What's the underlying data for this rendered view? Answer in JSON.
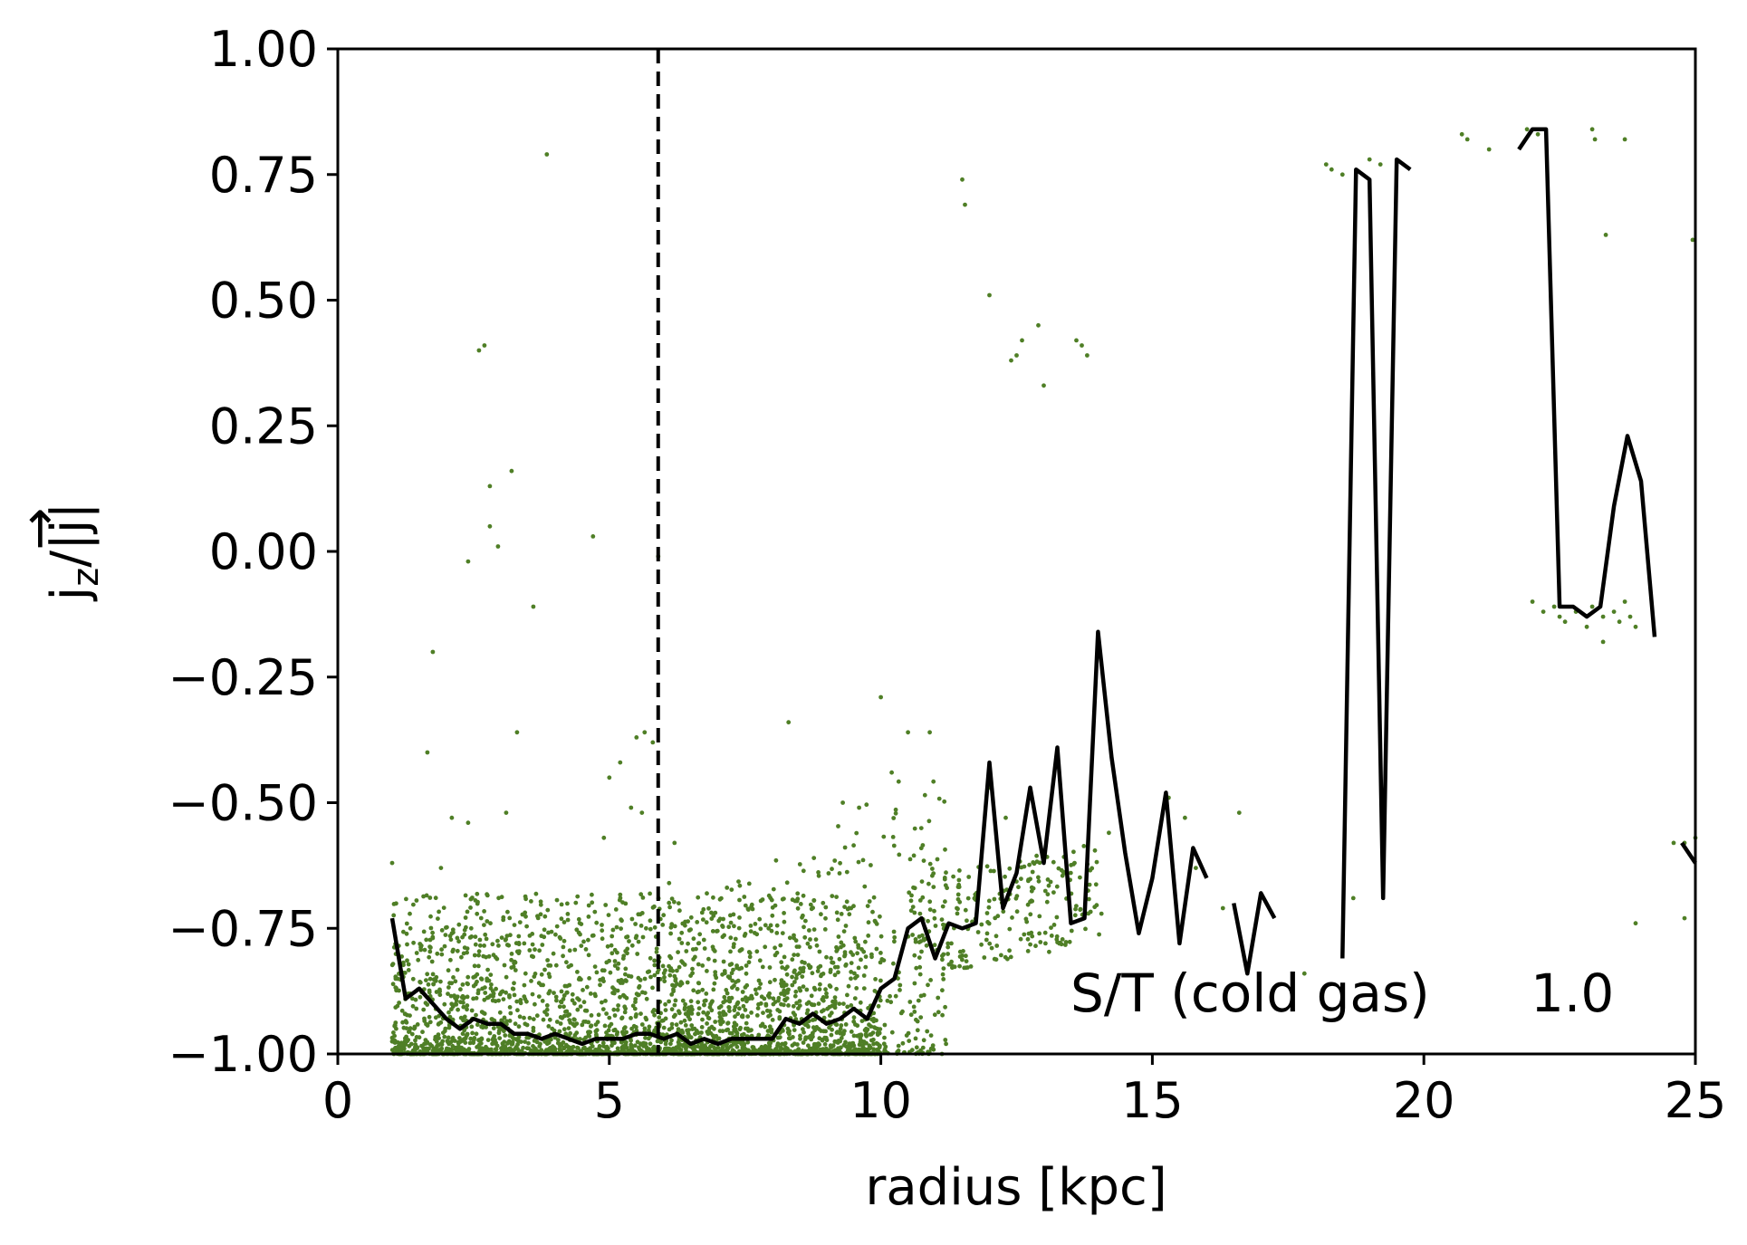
{
  "chart_data": {
    "type": "scatter",
    "xlabel": "radius [kpc]",
    "ylabel": "j_z/|j|",
    "ylabel_main": "j",
    "ylabel_sub": "z",
    "ylabel_rest": "/|j|",
    "ylabel_arrow": "→",
    "xlim": [
      0,
      25
    ],
    "ylim": [
      -1.0,
      1.0
    ],
    "x_ticks": [
      0,
      5,
      10,
      15,
      20,
      25
    ],
    "x_tick_labels": [
      "0",
      "5",
      "10",
      "15",
      "20",
      "25"
    ],
    "y_ticks": [
      1.0,
      0.75,
      0.5,
      0.25,
      0.0,
      -0.25,
      -0.5,
      -0.75,
      -1.0
    ],
    "y_tick_labels": [
      "1.00",
      "0.75",
      "0.50",
      "0.25",
      "0.00",
      "−0.25",
      "−0.50",
      "−0.75",
      "−1.00"
    ],
    "grid": false,
    "annotation": {
      "label": "S/T (cold gas)",
      "value": "1.0"
    },
    "vline": {
      "x": 5.9,
      "style": "dashed",
      "color": "#000000"
    },
    "scatter_color": "#4f7f26",
    "line_color": "#000000",
    "scatter_points": [
      [
        3.85,
        0.79
      ],
      [
        2.6,
        0.4
      ],
      [
        2.7,
        0.41
      ],
      [
        3.2,
        0.16
      ],
      [
        2.8,
        0.13
      ],
      [
        2.8,
        0.05
      ],
      [
        2.95,
        0.01
      ],
      [
        2.4,
        -0.02
      ],
      [
        4.7,
        0.03
      ],
      [
        3.6,
        -0.11
      ],
      [
        5.9,
        -0.01
      ],
      [
        1.75,
        -0.2
      ],
      [
        1.65,
        -0.4
      ],
      [
        3.3,
        -0.36
      ],
      [
        2.1,
        -0.53
      ],
      [
        2.4,
        -0.54
      ],
      [
        3.1,
        -0.52
      ],
      [
        1.9,
        -0.63
      ],
      [
        1.0,
        -0.62
      ],
      [
        5.5,
        -0.37
      ],
      [
        5.65,
        -0.36
      ],
      [
        5.8,
        -0.38
      ],
      [
        5.2,
        -0.42
      ],
      [
        5.0,
        -0.45
      ],
      [
        5.4,
        -0.51
      ],
      [
        5.6,
        -0.52
      ],
      [
        4.9,
        -0.57
      ],
      [
        6.2,
        -0.58
      ],
      [
        6.1,
        -0.66
      ],
      [
        8.3,
        -0.34
      ],
      [
        10.0,
        -0.29
      ],
      [
        10.5,
        -0.36
      ],
      [
        10.9,
        -0.36
      ],
      [
        9.3,
        -0.5
      ],
      [
        9.6,
        -0.51
      ],
      [
        10.2,
        -0.44
      ],
      [
        11.4,
        -0.71
      ],
      [
        11.3,
        -0.78
      ],
      [
        11.2,
        -0.98
      ],
      [
        11.5,
        0.74
      ],
      [
        11.55,
        0.69
      ],
      [
        12.0,
        0.51
      ],
      [
        12.4,
        0.38
      ],
      [
        12.5,
        0.39
      ],
      [
        12.6,
        0.42
      ],
      [
        12.9,
        0.45
      ],
      [
        13.0,
        0.33
      ],
      [
        13.6,
        0.42
      ],
      [
        13.7,
        0.41
      ],
      [
        13.8,
        0.39
      ],
      [
        15.3,
        -0.49
      ],
      [
        15.6,
        -0.53
      ],
      [
        16.6,
        -0.52
      ],
      [
        12.0,
        -0.47
      ],
      [
        12.3,
        -0.53
      ],
      [
        14.2,
        -0.56
      ],
      [
        15.8,
        -0.63
      ],
      [
        16.3,
        -0.71
      ],
      [
        17.8,
        -0.84
      ],
      [
        18.2,
        0.77
      ],
      [
        18.3,
        0.76
      ],
      [
        18.5,
        0.75
      ],
      [
        18.7,
        -0.69
      ],
      [
        19.0,
        0.78
      ],
      [
        19.2,
        0.77
      ],
      [
        20.7,
        0.83
      ],
      [
        20.8,
        0.82
      ],
      [
        21.2,
        0.8
      ],
      [
        21.9,
        0.84
      ],
      [
        22.1,
        0.83
      ],
      [
        23.1,
        0.84
      ],
      [
        23.15,
        0.82
      ],
      [
        23.7,
        0.82
      ],
      [
        23.35,
        0.63
      ],
      [
        22.0,
        -0.1
      ],
      [
        22.2,
        -0.12
      ],
      [
        22.4,
        -0.11
      ],
      [
        22.5,
        -0.13
      ],
      [
        22.6,
        -0.14
      ],
      [
        22.8,
        -0.12
      ],
      [
        23.0,
        -0.15
      ],
      [
        23.1,
        -0.11
      ],
      [
        23.3,
        -0.13
      ],
      [
        23.3,
        -0.18
      ],
      [
        23.5,
        -0.12
      ],
      [
        23.6,
        -0.14
      ],
      [
        23.7,
        -0.1
      ],
      [
        23.8,
        -0.13
      ],
      [
        23.9,
        -0.15
      ],
      [
        24.6,
        -0.58
      ],
      [
        24.8,
        -0.58
      ],
      [
        25.0,
        -0.57
      ],
      [
        23.9,
        -0.74
      ],
      [
        24.8,
        -0.73
      ],
      [
        24.95,
        0.62
      ]
    ],
    "line_segments": [
      [
        [
          1.0,
          -0.73
        ],
        [
          1.25,
          -0.89
        ],
        [
          1.5,
          -0.87
        ],
        [
          1.75,
          -0.9
        ],
        [
          2.0,
          -0.93
        ],
        [
          2.25,
          -0.95
        ],
        [
          2.5,
          -0.93
        ],
        [
          2.75,
          -0.94
        ],
        [
          3.0,
          -0.94
        ],
        [
          3.25,
          -0.96
        ],
        [
          3.5,
          -0.96
        ],
        [
          3.75,
          -0.97
        ],
        [
          4.0,
          -0.96
        ],
        [
          4.25,
          -0.97
        ],
        [
          4.5,
          -0.98
        ],
        [
          4.75,
          -0.97
        ],
        [
          5.0,
          -0.97
        ],
        [
          5.25,
          -0.97
        ],
        [
          5.5,
          -0.96
        ],
        [
          5.75,
          -0.96
        ],
        [
          6.0,
          -0.97
        ],
        [
          6.25,
          -0.96
        ],
        [
          6.5,
          -0.98
        ],
        [
          6.75,
          -0.97
        ],
        [
          7.0,
          -0.98
        ],
        [
          7.25,
          -0.97
        ],
        [
          7.5,
          -0.97
        ],
        [
          7.75,
          -0.97
        ],
        [
          8.0,
          -0.97
        ],
        [
          8.25,
          -0.93
        ],
        [
          8.5,
          -0.94
        ],
        [
          8.75,
          -0.92
        ],
        [
          9.0,
          -0.94
        ],
        [
          9.25,
          -0.93
        ],
        [
          9.5,
          -0.91
        ],
        [
          9.75,
          -0.93
        ],
        [
          10.0,
          -0.87
        ],
        [
          10.25,
          -0.85
        ],
        [
          10.5,
          -0.75
        ],
        [
          10.75,
          -0.73
        ],
        [
          11.0,
          -0.81
        ],
        [
          11.25,
          -0.74
        ],
        [
          11.5,
          -0.75
        ],
        [
          11.75,
          -0.74
        ],
        [
          12.0,
          -0.42
        ],
        [
          12.25,
          -0.71
        ],
        [
          12.5,
          -0.64
        ],
        [
          12.75,
          -0.47
        ],
        [
          13.0,
          -0.62
        ],
        [
          13.25,
          -0.39
        ],
        [
          13.5,
          -0.74
        ],
        [
          13.75,
          -0.73
        ],
        [
          14.0,
          -0.16
        ],
        [
          14.25,
          -0.41
        ],
        [
          14.5,
          -0.6
        ],
        [
          14.75,
          -0.76
        ],
        [
          15.0,
          -0.65
        ],
        [
          15.25,
          -0.48
        ],
        [
          15.5,
          -0.78
        ],
        [
          15.75,
          -0.59
        ],
        [
          16.0,
          -0.65
        ]
      ],
      [
        [
          16.5,
          -0.7
        ],
        [
          16.75,
          -0.84
        ],
        [
          17.0,
          -0.68
        ],
        [
          17.25,
          -0.73
        ]
      ],
      [
        [
          18.5,
          -0.81
        ],
        [
          18.75,
          0.76
        ],
        [
          19.0,
          0.74
        ],
        [
          19.25,
          -0.69
        ],
        [
          19.5,
          0.78
        ],
        [
          19.75,
          0.76
        ]
      ],
      [
        [
          21.75,
          0.8
        ],
        [
          22.0,
          0.84
        ],
        [
          22.25,
          0.84
        ],
        [
          22.5,
          -0.11
        ],
        [
          22.75,
          -0.11
        ],
        [
          23.0,
          -0.13
        ],
        [
          23.25,
          -0.11
        ],
        [
          23.5,
          0.09
        ],
        [
          23.75,
          0.23
        ],
        [
          24.0,
          0.14
        ],
        [
          24.25,
          -0.17
        ]
      ],
      [
        [
          24.75,
          -0.58
        ],
        [
          25.0,
          -0.62
        ]
      ],
      [
        [
          25.0,
          0.62
        ]
      ]
    ]
  }
}
